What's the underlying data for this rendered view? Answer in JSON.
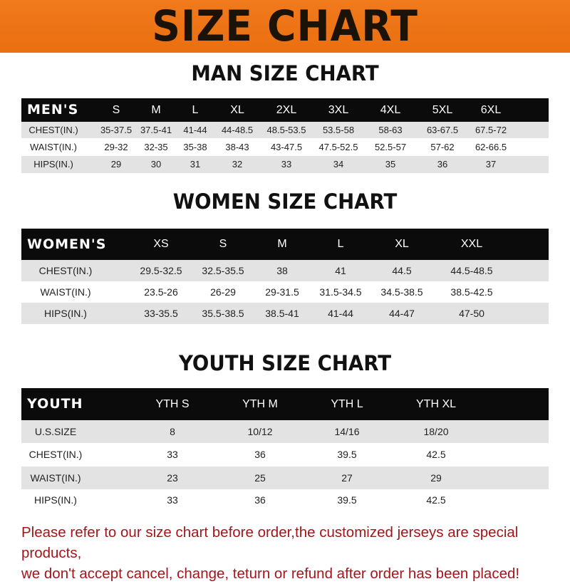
{
  "banner": {
    "title": "SIZE CHART",
    "color": "#ee7516"
  },
  "men": {
    "title": "MAN SIZE CHART",
    "header": [
      "MEN'S",
      "S",
      "M",
      "L",
      "XL",
      "2XL",
      "3XL",
      "4XL",
      "5XL",
      "6XL"
    ],
    "rows": [
      [
        "CHEST(IN.)",
        "35-37.5",
        "37.5-41",
        "41-44",
        "44-48.5",
        "48.5-53.5",
        "53.5-58",
        "58-63",
        "63-67.5",
        "67.5-72"
      ],
      [
        "WAIST(IN.)",
        "29-32",
        "32-35",
        "35-38",
        "38-43",
        "43-47.5",
        "47.5-52.5",
        "52.5-57",
        "57-62",
        "62-66.5"
      ],
      [
        "HIPS(IN.)",
        "29",
        "30",
        "31",
        "32",
        "33",
        "34",
        "35",
        "36",
        "37"
      ]
    ]
  },
  "women": {
    "title": "WOMEN SIZE CHART",
    "header": [
      "WOMEN'S",
      "XS",
      "S",
      "M",
      "L",
      "XL",
      "XXL"
    ],
    "rows": [
      [
        "CHEST(IN.)",
        "29.5-32.5",
        "32.5-35.5",
        "38",
        "41",
        "44.5",
        "44.5-48.5"
      ],
      [
        "WAIST(IN.)",
        "23.5-26",
        "26-29",
        "29-31.5",
        "31.5-34.5",
        "34.5-38.5",
        "38.5-42.5"
      ],
      [
        "HIPS(IN.)",
        "33-35.5",
        "35.5-38.5",
        "38.5-41",
        "41-44",
        "44-47",
        "47-50"
      ]
    ]
  },
  "youth": {
    "title": "YOUTH SIZE CHART",
    "header": [
      "YOUTH",
      "YTH S",
      "YTH M",
      "YTH L",
      "YTH XL"
    ],
    "rows": [
      [
        "U.S.SIZE",
        "8",
        "10/12",
        "14/16",
        "18/20"
      ],
      [
        "CHEST(IN.)",
        "33",
        "36",
        "39.5",
        "42.5"
      ],
      [
        "WAIST(IN.)",
        "23",
        "25",
        "27",
        "29"
      ],
      [
        "HIPS(IN.)",
        "33",
        "36",
        "39.5",
        "42.5"
      ]
    ]
  },
  "notice": {
    "line1": "Please refer to our size chart before order,the customized jerseys are special products,",
    "line2": "we don't accept cancel, change, teturn or refund after order has been placed!",
    "color": "#a3161b"
  }
}
